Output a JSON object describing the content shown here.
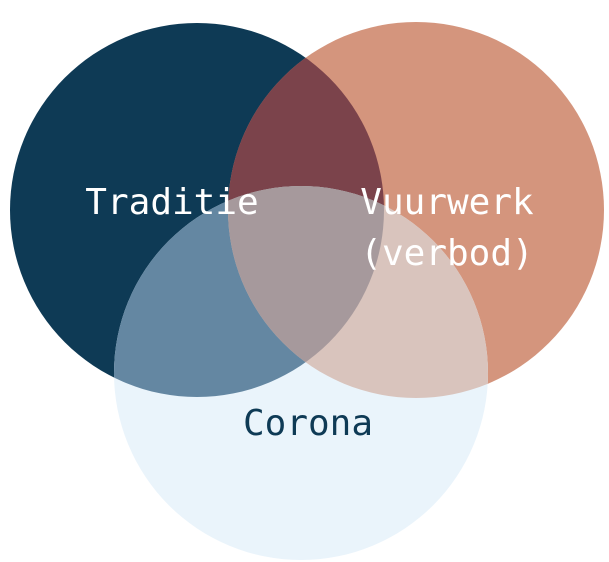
{
  "sets": [
    {
      "label_lines": [
        "Traditie"
      ]
    },
    {
      "label_lines": [
        "Vuurwerk",
        "(verbod)"
      ]
    },
    {
      "label_lines": [
        "Corona"
      ]
    }
  ]
}
